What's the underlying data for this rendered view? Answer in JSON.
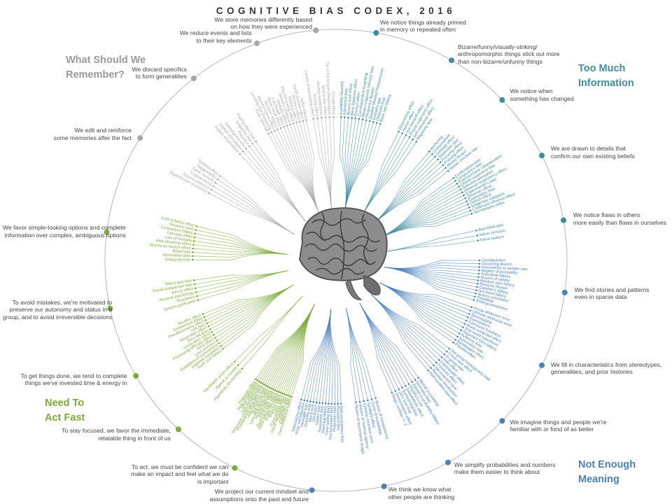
{
  "title": "COGNITIVE BIAS CODEX, 2016",
  "colors": {
    "grey": "#a8a8a8",
    "teal": "#3f8ca0",
    "blue": "#4a80bb",
    "green": "#7cab3a",
    "ring": "#b5b5b5"
  },
  "categories": {
    "too_much": "Too Much Information",
    "meaning": "Not Enough Meaning",
    "act_fast": "Need To Act Fast",
    "remember": "What Should We Remember?"
  },
  "groups": {
    "g1": "We notice things already primed\nin memory or repeated often",
    "g2": "Bizarre/funny/visually-striking/\nanthropomorphic things stick out more\nthan non-bizarre/unfunny things",
    "g3": "We notice when\nsomething has changed",
    "g4": "We are drawn to details that\nconfirm our own existing beliefs",
    "g5": "We notice flaws in others\nmore easily than flaws in ourselves",
    "g6": "We find stories and patterns\neven in sparse data",
    "g7": "We fill in characteristics from stereotypes,\ngeneralities, and prior histories",
    "g8": "We imagine things and people we're\nfamiliar with or fond of as better",
    "g9": "We simplify probabilities and numbers\nmake them easier to think about",
    "g10": "We think we know what\nother people are thinking",
    "g11": "We project our current mindset and\nassumptions onto the past and future",
    "g12": "To act, we must be confident we can\nmake an impact and feel what we do\nis important",
    "g13": "To stay focused, we favor the immediate,\nrelatable thing in front of us",
    "g14": "To get things done, we tend to complete\nthings we've invested time & energy in",
    "g15": "To avoid mistakes, we're motivated to\npreserve our autonomy and status in a\ngroup, and to avoid irreversible decisions",
    "g16": "We favor simple-looking options and complete\ninformation over complex, ambiguous options",
    "g17": "We edit and reinforce\nsome memories after the fact",
    "g18": "We discard specifics\nto form generalities",
    "g19": "We reduce events and lists\nto their key elements",
    "g20": "We store memories differently based\non how they were experienced"
  },
  "biases": {
    "g1": [
      "Availability heuristic",
      "Attentional bias",
      "Illusory truth effect",
      "Mere exposure effect",
      "Context effect",
      "Cue-dependent forgetting",
      "Mood-congruent memory bias",
      "Frequency illusion",
      "Baader-Meinhof Phenomenon",
      "Empathy gap",
      "Omission bias",
      "Base rate fallacy"
    ],
    "g2": [
      "Bizarreness effect",
      "Humor effect",
      "Von Restorff effect",
      "Picture superiority effect",
      "Self-relevance effect",
      "Negativity bias"
    ],
    "g3": [
      "Anchoring",
      "Conservatism",
      "Contrast effect",
      "Distinction bias",
      "Focusing effect",
      "Framing effect",
      "Money illusion",
      "Weber–Fechner law"
    ],
    "g4": [
      "Confirmation bias",
      "Congruence bias",
      "Post-purchase rationalization",
      "Choice-supportive bias",
      "Selective perception",
      "Observer-expectancy effect",
      "Experimenter's bias",
      "Observer effect",
      "Expectation bias",
      "Ostrich effect",
      "Subjective validation",
      "Continued influence effect",
      "Semmelweis reflex"
    ],
    "g5": [
      "Bias blind spot",
      "Naïve cynicism",
      "Naïve realism"
    ],
    "g6": [
      "Confabulation",
      "Clustering illusion",
      "Insensitivity to sample size",
      "Neglect of probability",
      "Anecdotal fallacy",
      "Illusion of validity",
      "Masked man fallacy",
      "Recency illusion",
      "Gambler's fallacy",
      "Hot-hand fallacy",
      "Illusory correlation",
      "Pareidolia",
      "Anthropomorphism"
    ],
    "g7": [
      "Group attribution error",
      "Ultimate attribution error",
      "Stereotyping",
      "Essentialism",
      "Functional fixedness",
      "Moral credential effect",
      "Just-world hypothesis",
      "Argument from fallacy",
      "Authority bias",
      "Automation bias",
      "Bandwagon effect",
      "Placebo effect"
    ],
    "g8": [
      "Out-group homogeneity bias",
      "Cross-race effect",
      "In-group bias",
      "Halo effect",
      "Cheerleader effect",
      "Positivity effect",
      "Not invented here",
      "Reactive devaluation",
      "Well-traveled road effect"
    ],
    "g9": [
      "Mental accounting",
      "Normalcy bias",
      "Appeal to probability fallacy",
      "Murphy's Law",
      "Subadditivity effect",
      "Survivorship bias",
      "Zero sum bias",
      "Denomination effect",
      "Magic number 7+-2"
    ],
    "g10": [
      "Illusion of transparency",
      "Curse of knowledge",
      "Spotlight effect",
      "Extrinsic incentive error",
      "Illusion of external agency",
      "Illusion of asymmetric insight"
    ],
    "g11": [
      "Self-consistency bias",
      "Resistant bias",
      "Projection bias",
      "Pro-innovation bias",
      "Time-saving bias",
      "Planning fallacy",
      "Pessimism bias",
      "Impact bias",
      "Declinism",
      "Moral luck",
      "Outcome bias",
      "Hindsight bias",
      "Rosy retrospection",
      "Telescoping effect"
    ],
    "g12": [
      "Overconfidence effect",
      "Egocentric bias",
      "Optimism bias",
      "Social desirability bias",
      "Third-person effect",
      "Forer effect",
      "Barnum effect",
      "Illusion of control",
      "False consensus effect",
      "Dunning-Kruger effect",
      "Hard-easy effect",
      "Illusory superiority",
      "Lake Wobegone effect",
      "Self-serving bias",
      "Actor-observer bias",
      "Fundamental attribution error",
      "Defensive attribution hypothesis",
      "Trait ascription bias",
      "Effort justification",
      "Risk compensation",
      "Peltzman effect"
    ],
    "g13": [
      "Hyperbolic discounting",
      "Appeal to novelty",
      "Identifiable victim effect"
    ],
    "g14": [
      "Sunk cost fallacy",
      "Irrational escalation",
      "Escalation of commitment",
      "Loss aversion",
      "IKEA effect",
      "Processing difficulty effect",
      "Generation effect",
      "Zero-risk bias",
      "Disposition effect",
      "Unit bias",
      "Pseudocertainty effect",
      "Endowment effect",
      "Backfire effect"
    ],
    "g15": [
      "System justification",
      "Reactance",
      "Reverse psychology",
      "Decoy effect",
      "Social comparison bias",
      "Status quo bias"
    ],
    "g16": [
      "Ambiguity bias",
      "Information bias",
      "Belief bias",
      "Rhyme as reason effect",
      "Bike-shedding effect",
      "Law of Triviality",
      "Delmore effect",
      "Conjunction fallacy",
      "Occam's razor",
      "Less-is-better effect"
    ],
    "g17": [
      "Misattribution of memory",
      "Source confusion",
      "Cryptomnesia",
      "False memory",
      "Suggestibility",
      "Spacing effect"
    ],
    "g18": [
      "Implicit associations",
      "Implicit stereotypes",
      "Stereotypical bias",
      "Prejudice",
      "Negativity bias",
      "Fading affect bias"
    ],
    "g19": [
      "Peak–end rule",
      "Leveling and sharpening",
      "Misinformation effect",
      "Duration neglect",
      "Serial recall effect",
      "List-length effect",
      "Modality effect",
      "Memory inhibition",
      "Part-list cueing effect",
      "Primacy effect",
      "Recency effect",
      "Serial position effect",
      "Suffix effect"
    ],
    "g20": [
      "Levels of processing effect",
      "Testing effect",
      "Absent-mindedness",
      "Next-in-line effect",
      "Tip of the tongue phenomenon",
      "Google effect"
    ]
  }
}
